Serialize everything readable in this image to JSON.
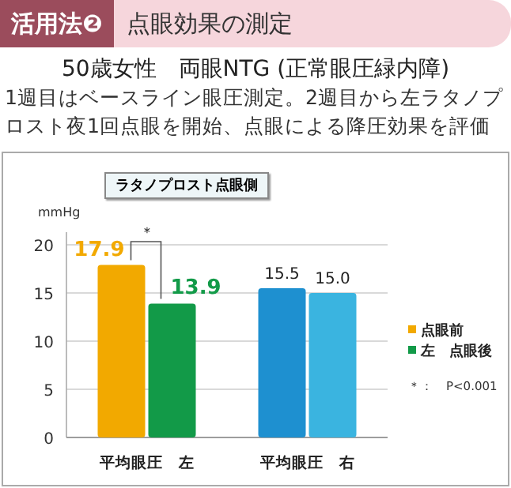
{
  "chart_data": {
    "type": "bar",
    "title": "点眼効果の測定",
    "subtitle": "50歳女性　両眼NTG (正常眼圧緑内障)",
    "annotations": [
      "活用法❷",
      "1週目はベースライン眼圧測定。2週目から左ラタノプロスト夜1回点眼を開始、点眼による降圧効果を評価",
      "ラタノプロスト点眼側",
      "＊",
      "＊：　P<0.001"
    ],
    "ylabel": "mmHg",
    "categories": [
      "平均眼圧　左",
      "平均眼圧　右"
    ],
    "series": [
      {
        "name": "点眼前",
        "color": "#f2a900",
        "colors": [
          "#f2a900",
          "#1e90d0"
        ],
        "values": [
          17.9,
          15.5
        ],
        "value_labels": [
          "17.9",
          "15.5"
        ]
      },
      {
        "name": "左　点眼後",
        "color": "#129a48",
        "colors": [
          "#129a48",
          "#3ab4e0"
        ],
        "values": [
          13.9,
          15.0
        ],
        "value_labels": [
          "13.9",
          "15.0"
        ]
      }
    ],
    "ylim": [
      0,
      20
    ],
    "yticks": [
      0,
      5,
      10,
      15,
      20
    ],
    "grid": "y",
    "legend": "right"
  }
}
